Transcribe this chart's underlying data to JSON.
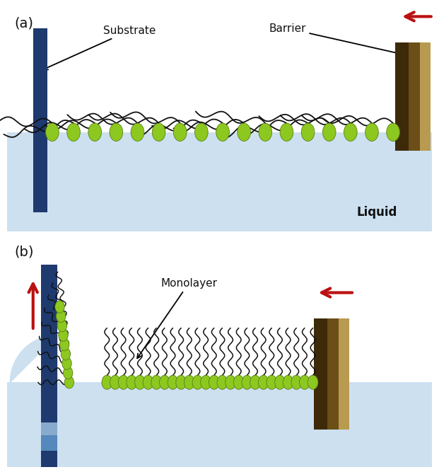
{
  "fig_width": 6.21,
  "fig_height": 6.67,
  "bg_color": "#ffffff",
  "liquid_color": "#cce0f0",
  "substrate_dark": "#1e3a6e",
  "substrate_mid": "#2a5aaa",
  "substrate_light": "#6699cc",
  "substrate_lighter": "#99bbdd",
  "barrier_col1": "#3d2a08",
  "barrier_col2": "#6b4e18",
  "barrier_col3": "#b89a50",
  "bead_color": "#8dc820",
  "bead_edge": "#5a8010",
  "arrow_color": "#bb1111",
  "tail_color": "#111111",
  "label_color": "#111111",
  "panel_a_label": "(a)",
  "panel_b_label": "(b)",
  "substrate_label": "Substrate",
  "barrier_label": "Barrier",
  "monolayer_label": "Monolayer",
  "liquid_label": "Liquid"
}
